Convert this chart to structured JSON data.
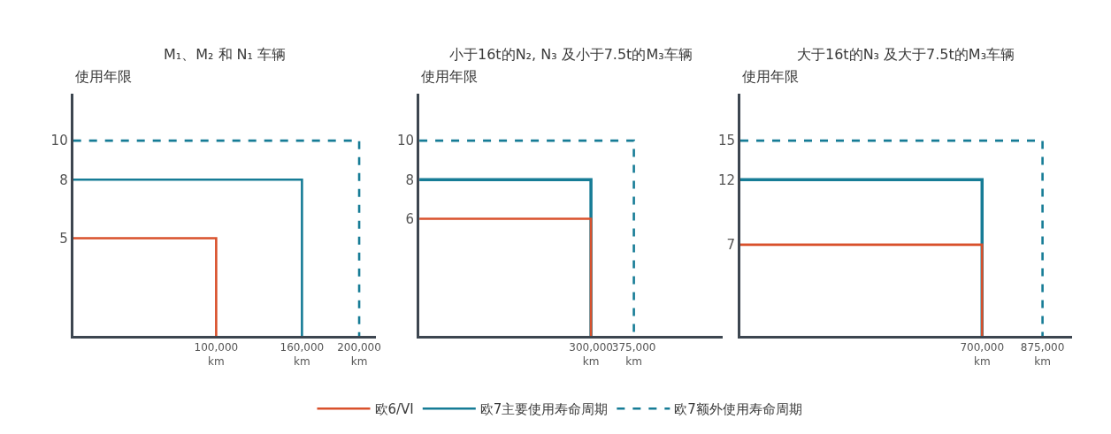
{
  "chart_data": [
    {
      "type": "line",
      "title": "M₁、M₂ 和 N₁ 车辆",
      "ylabel": "使用年限",
      "xlim": [
        0,
        212000
      ],
      "ylim": [
        0,
        12.4
      ],
      "xticks": [
        {
          "value": 100000,
          "label": "100,000 km"
        },
        {
          "value": 160000,
          "label": "160,000 km"
        },
        {
          "value": 200000,
          "label": "200,000 km"
        }
      ],
      "yticks": [
        5,
        8,
        10
      ],
      "legend": "bottom",
      "series": [
        {
          "name": "欧6/VI",
          "color": "#d9512c",
          "x": [
            0,
            100000,
            100000
          ],
          "values": [
            5,
            5,
            0
          ],
          "line_style": "solid"
        },
        {
          "name": "欧7主要使用寿命周期",
          "color": "#167c96",
          "x": [
            0,
            160000,
            160000
          ],
          "values": [
            8,
            8,
            0
          ],
          "line_style": "solid"
        },
        {
          "name": "欧7额外使用寿命周期",
          "color": "#167c96",
          "x": [
            0,
            200000,
            200000
          ],
          "values": [
            10,
            10,
            0
          ],
          "line_style": "dashed"
        }
      ]
    },
    {
      "type": "line",
      "title": "小于16t的N₂, N₃ 及小于7.5t的M₃车辆",
      "ylabel": "使用年限",
      "xlim": [
        0,
        530000
      ],
      "ylim": [
        0,
        12.4
      ],
      "xticks": [
        {
          "value": 300000,
          "label": "300,000 km"
        },
        {
          "value": 375000,
          "label": "375,000 km"
        }
      ],
      "yticks": [
        6,
        8,
        10
      ],
      "series": [
        {
          "color": "#167c96",
          "x": [
            0,
            300000,
            300000
          ],
          "values": [
            8,
            8,
            0
          ],
          "line_style": "solid"
        },
        {
          "color": "#d9512c",
          "x": [
            0,
            300000,
            300000
          ],
          "values": [
            6,
            6,
            0
          ],
          "line_style": "solid"
        },
        {
          "color": "#167c96",
          "x": [
            0,
            375000,
            375000
          ],
          "values": [
            10,
            10,
            0
          ],
          "line_style": "dashed"
        }
      ]
    },
    {
      "type": "line",
      "title": "大于16t的N₃ 及大于7.5t的M₃车辆",
      "ylabel": "使用年限",
      "xlim": [
        0,
        960000
      ],
      "ylim": [
        0,
        18.6
      ],
      "xticks": [
        {
          "value": 700000,
          "label": "700,000 km"
        },
        {
          "value": 875000,
          "label": "875,000 km"
        }
      ],
      "yticks": [
        7,
        12,
        15
      ],
      "series": [
        {
          "color": "#167c96",
          "x": [
            0,
            700000,
            700000
          ],
          "values": [
            12,
            12,
            0
          ],
          "line_style": "solid"
        },
        {
          "color": "#d9512c",
          "x": [
            0,
            700000,
            700000
          ],
          "values": [
            7,
            7,
            0
          ],
          "line_style": "solid"
        },
        {
          "color": "#167c96",
          "x": [
            0,
            875000,
            875000
          ],
          "values": [
            15,
            15,
            0
          ],
          "line_style": "dashed"
        }
      ]
    }
  ]
}
